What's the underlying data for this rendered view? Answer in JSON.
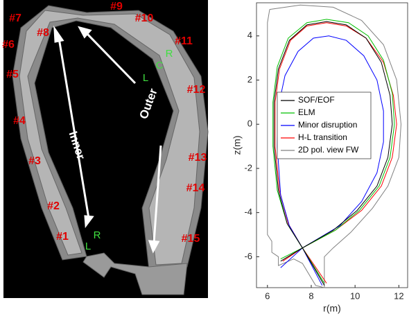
{
  "panel_a": {
    "segment_labels": [
      "#1",
      "#2",
      "#3",
      "#4",
      "#5",
      "#6",
      "#7",
      "#8",
      "#9",
      "#10",
      "#11",
      "#12",
      "#13",
      "#14",
      "#15"
    ],
    "inner_label": "Inner",
    "outer_label": "Outer",
    "side_labels": [
      "L",
      "C",
      "R",
      "L",
      "R"
    ]
  },
  "chart_data": {
    "type": "line",
    "xlabel": "r(m)",
    "ylabel": "z(m)",
    "xlim": [
      5.5,
      12.4
    ],
    "ylim": [
      -7.4,
      5.5
    ],
    "xticks": [
      6,
      8,
      10,
      12
    ],
    "yticks": [
      4,
      2,
      0,
      -2,
      -4,
      -6
    ],
    "grid": false,
    "legend": "center",
    "series": [
      {
        "name": "SOF/EOF",
        "color": "#000000",
        "x": [
          6.6,
          7.6,
          6.9,
          6.5,
          6.3,
          6.3,
          6.5,
          7.0,
          7.8,
          8.7,
          9.6,
          10.5,
          11.2,
          11.6,
          11.7,
          11.5,
          11.0,
          10.1,
          9.0,
          7.6,
          8.6
        ],
        "values": [
          -6.2,
          -5.6,
          -4.5,
          -3.0,
          -1.0,
          1.0,
          2.5,
          3.8,
          4.5,
          4.65,
          4.5,
          3.9,
          2.8,
          1.3,
          0.0,
          -1.5,
          -2.8,
          -3.9,
          -4.8,
          -5.6,
          -7.3
        ]
      },
      {
        "name": "ELM",
        "color": "#00c000",
        "x": [
          6.6,
          7.6,
          6.9,
          6.45,
          6.25,
          6.25,
          6.45,
          6.95,
          7.8,
          8.7,
          9.7,
          10.6,
          11.3,
          11.7,
          11.8,
          11.6,
          11.1,
          10.2,
          9.1,
          7.6,
          8.6
        ],
        "values": [
          -6.1,
          -5.6,
          -4.5,
          -3.0,
          -1.0,
          1.0,
          2.6,
          3.9,
          4.6,
          4.75,
          4.6,
          4.0,
          2.9,
          1.4,
          0.0,
          -1.5,
          -2.8,
          -3.9,
          -4.8,
          -5.6,
          -7.2
        ]
      },
      {
        "name": "Minor disruption",
        "color": "#0000ff",
        "x": [
          6.6,
          7.6,
          7.0,
          6.6,
          6.45,
          6.5,
          6.8,
          7.4,
          8.1,
          8.8,
          9.6,
          10.4,
          11.0,
          11.3,
          11.3,
          11.0,
          10.3,
          9.3,
          7.6,
          8.5
        ],
        "values": [
          -6.5,
          -5.6,
          -4.6,
          -3.2,
          -1.0,
          0.8,
          2.2,
          3.3,
          3.9,
          4.0,
          3.8,
          3.1,
          2.0,
          0.6,
          -0.8,
          -2.2,
          -3.5,
          -4.6,
          -5.6,
          -7.3
        ]
      },
      {
        "name": "H-L transition",
        "color": "#ff0000",
        "x": [
          6.7,
          7.6,
          6.95,
          6.55,
          6.35,
          6.35,
          6.55,
          7.05,
          7.8,
          8.7,
          9.6,
          10.5,
          11.3,
          11.75,
          11.9,
          11.7,
          11.2,
          10.3,
          9.1,
          7.6,
          8.7
        ],
        "values": [
          -6.2,
          -5.6,
          -4.5,
          -3.0,
          -1.0,
          1.0,
          2.5,
          3.8,
          4.45,
          4.6,
          4.45,
          3.9,
          2.8,
          1.3,
          0.0,
          -1.5,
          -2.8,
          -3.9,
          -4.8,
          -5.6,
          -7.2
        ]
      },
      {
        "name": "2D pol. view FW",
        "color": "#808080",
        "x": [
          6.1,
          7.5,
          9.0,
          10.3,
          11.3,
          11.9,
          12.1,
          12.0,
          11.5,
          10.8,
          9.8,
          9.0,
          8.6,
          8.6,
          8.2,
          7.6,
          7.2,
          6.5,
          6.5,
          6.2,
          6.2,
          6.0,
          6.0,
          6.1
        ],
        "values": [
          5.2,
          5.4,
          5.3,
          4.7,
          3.6,
          2.0,
          0.0,
          -1.5,
          -2.8,
          -3.8,
          -4.9,
          -5.6,
          -6.0,
          -7.4,
          -7.3,
          -6.3,
          -6.1,
          -6.4,
          -6.0,
          -5.8,
          -5.3,
          -5.0,
          4.6,
          5.2
        ]
      }
    ]
  }
}
